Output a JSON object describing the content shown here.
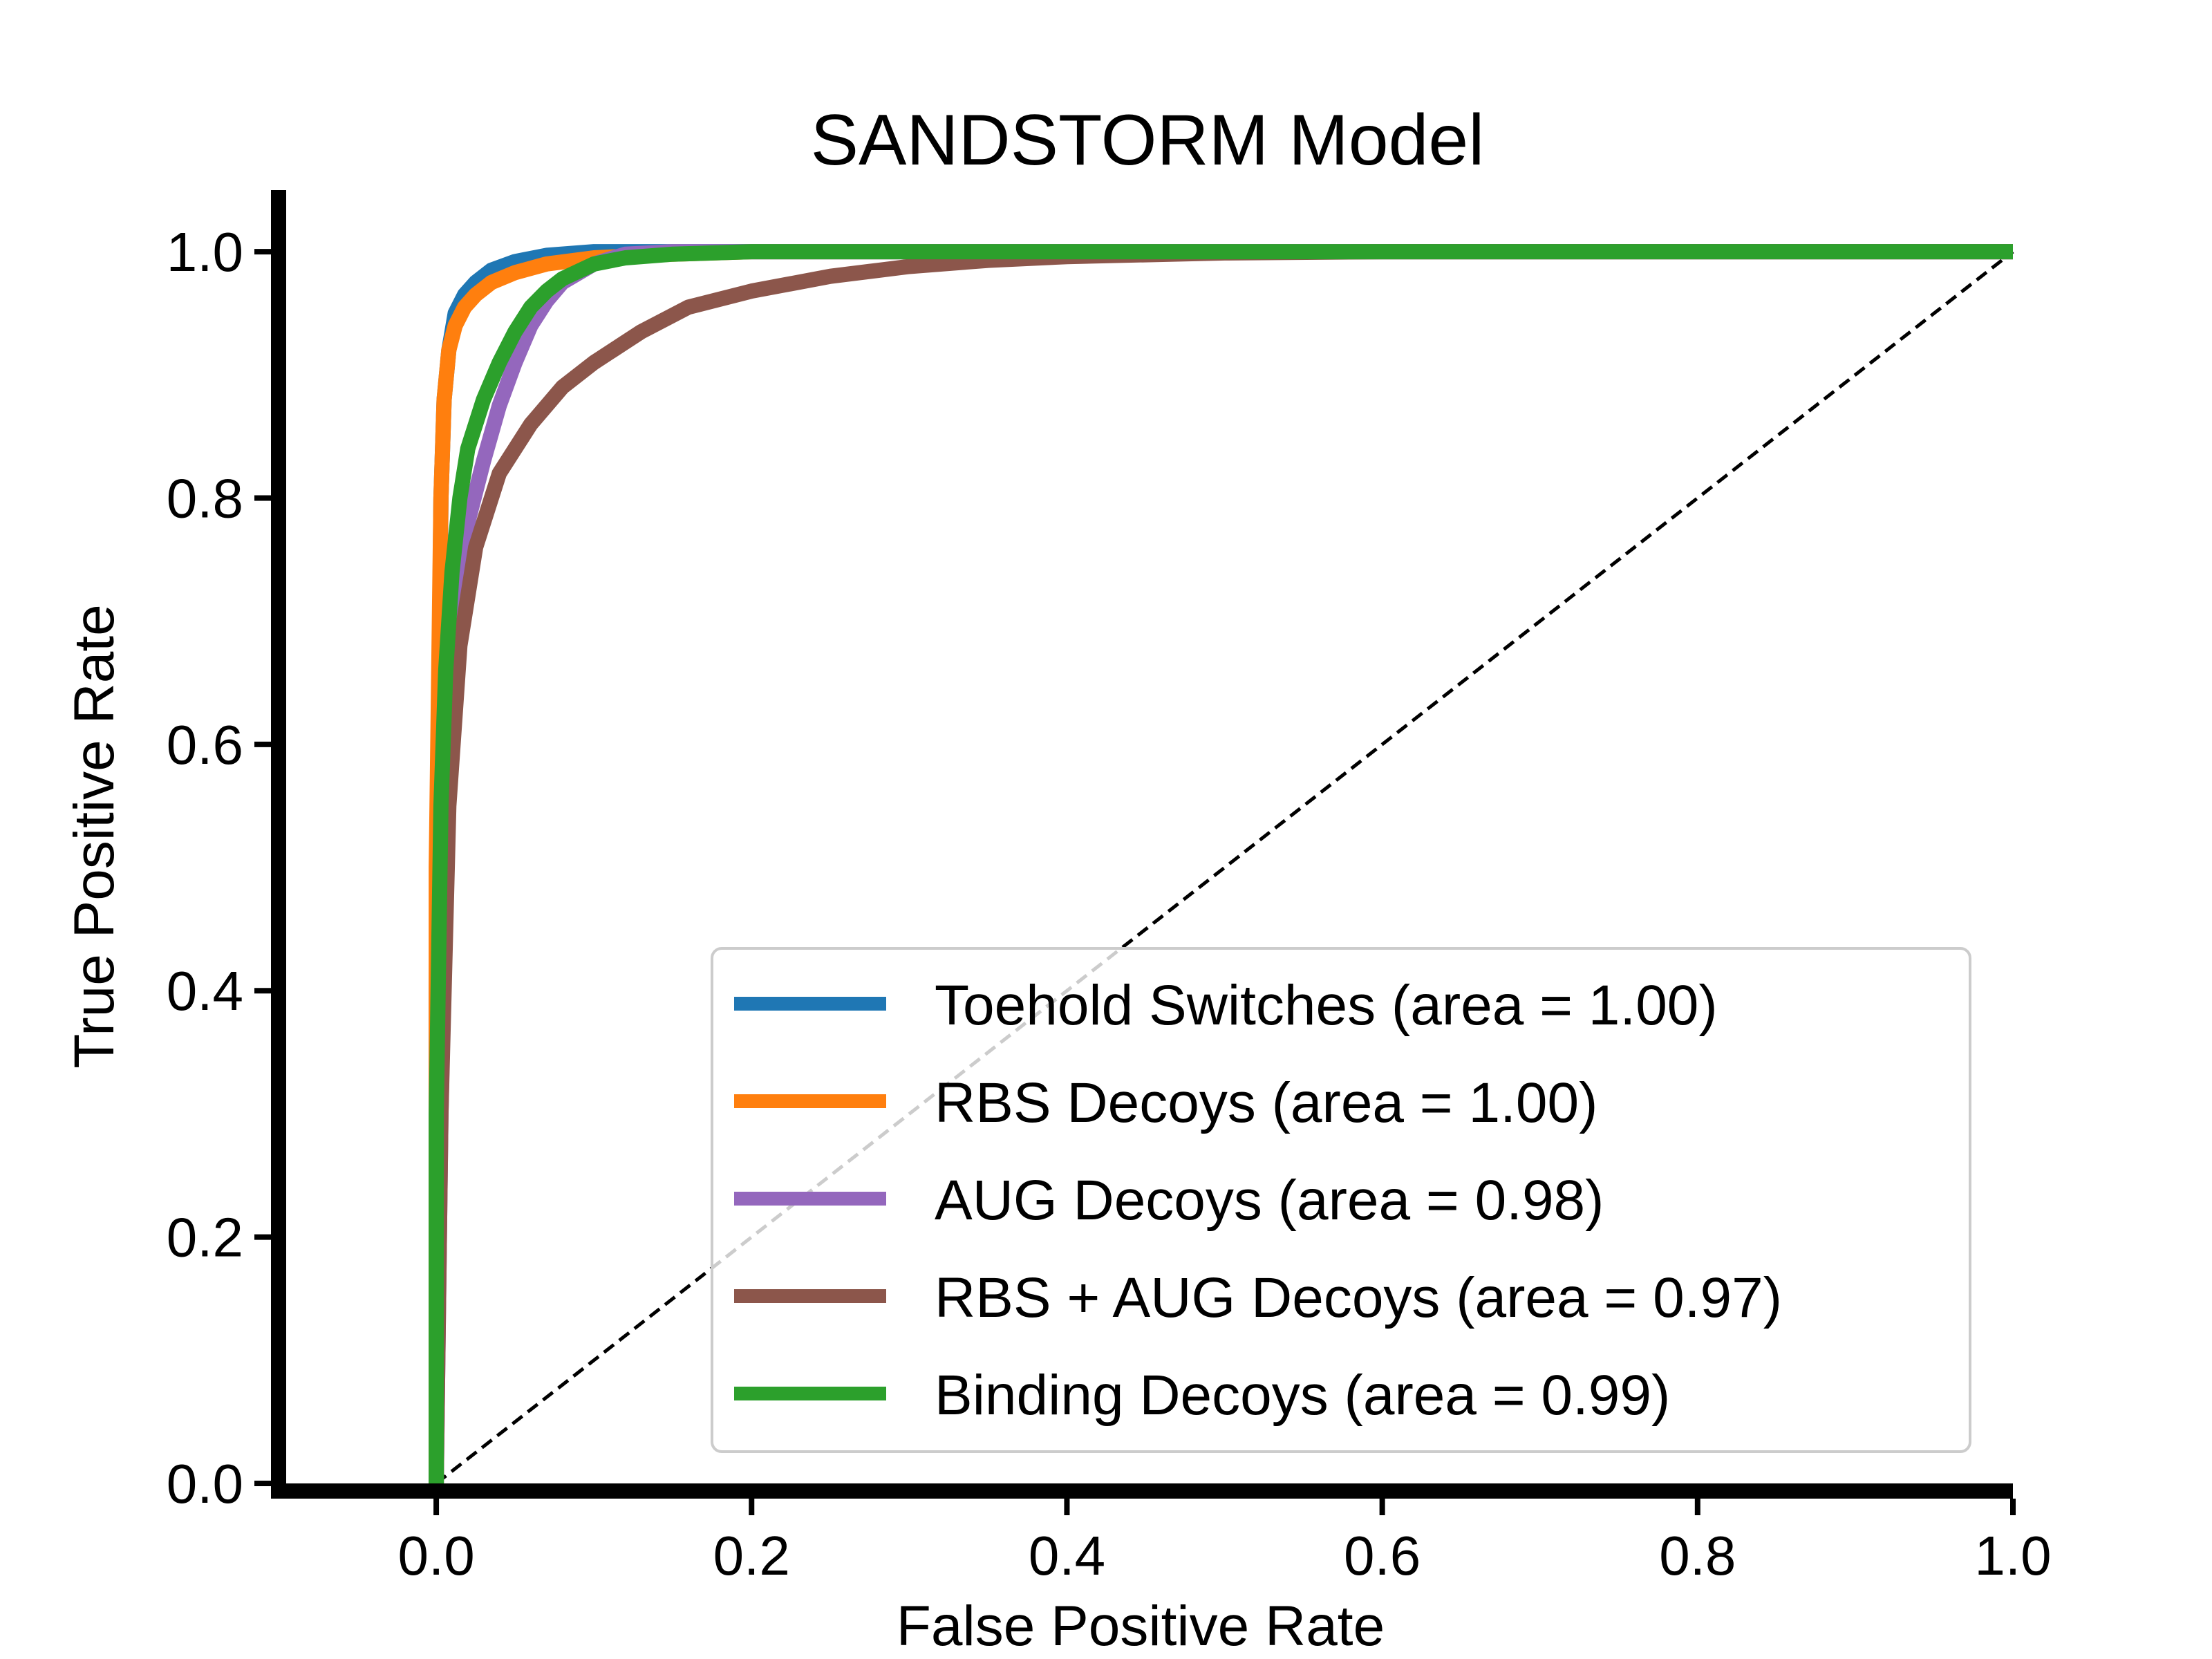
{
  "chart_data": {
    "type": "line",
    "title": "SANDSTORM Model",
    "xlabel": "False Positive Rate",
    "ylabel": "True Positive Rate",
    "xlim": [
      -0.1,
      1.0
    ],
    "ylim": [
      0.0,
      1.05
    ],
    "xticks": [
      0.0,
      0.2,
      0.4,
      0.6,
      0.8,
      1.0
    ],
    "xtick_labels": [
      "0.0",
      "0.2",
      "0.4",
      "0.6",
      "0.8",
      "1.0"
    ],
    "yticks": [
      0.0,
      0.2,
      0.4,
      0.6,
      0.8,
      1.0
    ],
    "ytick_labels": [
      "0.0",
      "0.2",
      "0.4",
      "0.6",
      "0.8",
      "1.0"
    ],
    "grid": false,
    "legend_position": "lower-right",
    "reference_line": {
      "x": [
        0,
        1
      ],
      "y": [
        0,
        1
      ],
      "style": "dashed",
      "color": "#000000"
    },
    "series": [
      {
        "name": "Toehold Switches (area = 1.00)",
        "color": "#1f77b4",
        "x": [
          0.0,
          0.0,
          0.003,
          0.005,
          0.008,
          0.012,
          0.018,
          0.025,
          0.035,
          0.05,
          0.07,
          0.1,
          0.15,
          1.0
        ],
        "y": [
          0.0,
          0.4,
          0.8,
          0.88,
          0.92,
          0.95,
          0.965,
          0.975,
          0.985,
          0.992,
          0.997,
          1.0,
          1.0,
          1.0
        ]
      },
      {
        "name": "RBS Decoys (area = 1.00)",
        "color": "#ff7f0e",
        "x": [
          0.0,
          0.0,
          0.003,
          0.005,
          0.008,
          0.012,
          0.018,
          0.025,
          0.035,
          0.05,
          0.07,
          0.1,
          0.15,
          0.2,
          1.0
        ],
        "y": [
          0.0,
          0.5,
          0.8,
          0.88,
          0.92,
          0.94,
          0.955,
          0.965,
          0.975,
          0.983,
          0.99,
          0.995,
          0.998,
          1.0,
          1.0
        ]
      },
      {
        "name": "AUG Decoys (area = 0.98)",
        "color": "#9467bd",
        "x": [
          0.0,
          0.003,
          0.007,
          0.012,
          0.02,
          0.03,
          0.04,
          0.05,
          0.06,
          0.07,
          0.08,
          0.1,
          0.12,
          0.15,
          1.0
        ],
        "y": [
          0.0,
          0.3,
          0.55,
          0.7,
          0.78,
          0.83,
          0.875,
          0.91,
          0.94,
          0.96,
          0.975,
          0.99,
          0.998,
          1.0,
          1.0
        ]
      },
      {
        "name": "RBS + AUG Decoys (area = 0.97)",
        "color": "#8c564b",
        "x": [
          0.0,
          0.003,
          0.008,
          0.015,
          0.025,
          0.04,
          0.06,
          0.08,
          0.1,
          0.13,
          0.16,
          0.2,
          0.25,
          0.3,
          0.35,
          0.4,
          0.5,
          0.6,
          1.0
        ],
        "y": [
          0.0,
          0.3,
          0.55,
          0.68,
          0.76,
          0.82,
          0.86,
          0.89,
          0.91,
          0.935,
          0.955,
          0.968,
          0.98,
          0.988,
          0.993,
          0.996,
          0.999,
          1.0,
          1.0
        ]
      },
      {
        "name": "Binding Decoys (area = 0.99)",
        "color": "#2ca02c",
        "x": [
          0.0,
          0.0,
          0.003,
          0.006,
          0.01,
          0.015,
          0.02,
          0.03,
          0.04,
          0.05,
          0.06,
          0.07,
          0.08,
          0.1,
          0.12,
          0.15,
          0.2,
          1.0
        ],
        "y": [
          0.0,
          0.3,
          0.55,
          0.66,
          0.74,
          0.8,
          0.84,
          0.88,
          0.91,
          0.935,
          0.955,
          0.968,
          0.978,
          0.99,
          0.995,
          0.998,
          1.0,
          1.0
        ]
      }
    ]
  }
}
